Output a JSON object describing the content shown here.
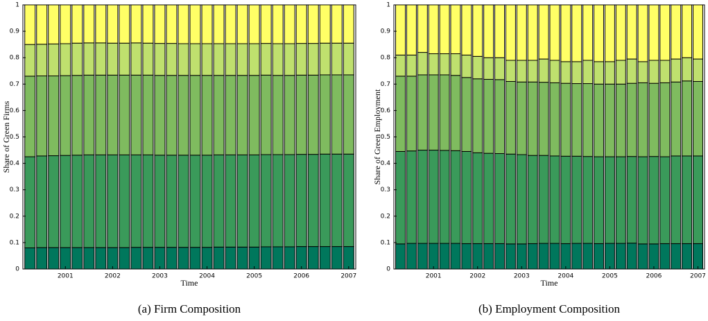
{
  "chart_data": [
    {
      "type": "stacked-bar",
      "ylabel": "Share of Green Firms",
      "xlabel": "Time",
      "caption": "(a) Firm Composition",
      "x": [
        2000.25,
        2000.5,
        2000.75,
        2001,
        2001.25,
        2001.5,
        2001.75,
        2002,
        2002.25,
        2002.5,
        2002.75,
        2003,
        2003.25,
        2003.5,
        2003.75,
        2004,
        2004.25,
        2004.5,
        2004.75,
        2005,
        2005.25,
        2005.5,
        2005.75,
        2006,
        2006.25,
        2006.5,
        2006.75,
        2007
      ],
      "xlim": [
        2000.1,
        2007.15
      ],
      "xticks": [
        2001,
        2002,
        2003,
        2004,
        2005,
        2006,
        2007
      ],
      "ylim": [
        0,
        1
      ],
      "yticks": [
        0,
        0.1,
        0.2,
        0.3,
        0.4,
        0.5,
        0.6,
        0.7,
        0.8,
        0.9,
        1
      ],
      "series": [
        {
          "color": "#00775c",
          "values": [
            0.08,
            0.081,
            0.081,
            0.081,
            0.081,
            0.081,
            0.081,
            0.081,
            0.081,
            0.082,
            0.082,
            0.082,
            0.082,
            0.082,
            0.082,
            0.082,
            0.083,
            0.083,
            0.083,
            0.083,
            0.084,
            0.084,
            0.084,
            0.085,
            0.085,
            0.085,
            0.085,
            0.085
          ]
        },
        {
          "color": "#3a9a5a",
          "values": [
            0.345,
            0.347,
            0.348,
            0.349,
            0.35,
            0.351,
            0.351,
            0.351,
            0.351,
            0.35,
            0.35,
            0.349,
            0.349,
            0.349,
            0.349,
            0.349,
            0.349,
            0.349,
            0.349,
            0.349,
            0.349,
            0.349,
            0.349,
            0.349,
            0.349,
            0.35,
            0.35,
            0.35
          ]
        },
        {
          "color": "#7fbb5f",
          "values": [
            0.305,
            0.303,
            0.302,
            0.302,
            0.302,
            0.302,
            0.302,
            0.302,
            0.302,
            0.302,
            0.302,
            0.302,
            0.302,
            0.302,
            0.302,
            0.302,
            0.301,
            0.301,
            0.301,
            0.301,
            0.301,
            0.3,
            0.3,
            0.3,
            0.3,
            0.3,
            0.3,
            0.3
          ]
        },
        {
          "color": "#bfe06e",
          "values": [
            0.12,
            0.12,
            0.121,
            0.121,
            0.122,
            0.122,
            0.122,
            0.121,
            0.121,
            0.122,
            0.121,
            0.121,
            0.121,
            0.12,
            0.12,
            0.12,
            0.12,
            0.12,
            0.12,
            0.12,
            0.12,
            0.12,
            0.12,
            0.12,
            0.12,
            0.12,
            0.12,
            0.12
          ]
        },
        {
          "color": "#ffff66",
          "values": [
            0.15,
            0.149,
            0.148,
            0.147,
            0.145,
            0.144,
            0.144,
            0.145,
            0.145,
            0.144,
            0.145,
            0.146,
            0.146,
            0.147,
            0.147,
            0.147,
            0.147,
            0.147,
            0.147,
            0.147,
            0.146,
            0.147,
            0.147,
            0.146,
            0.146,
            0.145,
            0.145,
            0.145
          ]
        }
      ]
    },
    {
      "type": "stacked-bar",
      "ylabel": "Share of Green Employment",
      "xlabel": "Time",
      "caption": "(b) Employment Composition",
      "x": [
        2000.25,
        2000.5,
        2000.75,
        2001,
        2001.25,
        2001.5,
        2001.75,
        2002,
        2002.25,
        2002.5,
        2002.75,
        2003,
        2003.25,
        2003.5,
        2003.75,
        2004,
        2004.25,
        2004.5,
        2004.75,
        2005,
        2005.25,
        2005.5,
        2005.75,
        2006,
        2006.25,
        2006.5,
        2006.75,
        2007
      ],
      "xlim": [
        2000.1,
        2007.15
      ],
      "xticks": [
        2001,
        2002,
        2003,
        2004,
        2005,
        2006,
        2007
      ],
      "ylim": [
        0,
        1
      ],
      "yticks": [
        0,
        0.1,
        0.2,
        0.3,
        0.4,
        0.5,
        0.6,
        0.7,
        0.8,
        0.9,
        1
      ],
      "series": [
        {
          "color": "#00775c",
          "values": [
            0.095,
            0.097,
            0.097,
            0.097,
            0.097,
            0.097,
            0.096,
            0.096,
            0.096,
            0.096,
            0.095,
            0.095,
            0.096,
            0.097,
            0.097,
            0.096,
            0.097,
            0.097,
            0.096,
            0.097,
            0.097,
            0.098,
            0.095,
            0.095,
            0.096,
            0.096,
            0.096,
            0.096
          ]
        },
        {
          "color": "#3a9a5a",
          "values": [
            0.35,
            0.35,
            0.353,
            0.353,
            0.352,
            0.351,
            0.349,
            0.344,
            0.342,
            0.341,
            0.34,
            0.338,
            0.334,
            0.333,
            0.331,
            0.331,
            0.33,
            0.329,
            0.329,
            0.328,
            0.328,
            0.328,
            0.33,
            0.331,
            0.329,
            0.332,
            0.332,
            0.332
          ]
        },
        {
          "color": "#7fbb5f",
          "values": [
            0.285,
            0.283,
            0.285,
            0.285,
            0.286,
            0.285,
            0.28,
            0.28,
            0.28,
            0.28,
            0.275,
            0.275,
            0.278,
            0.277,
            0.277,
            0.276,
            0.275,
            0.276,
            0.275,
            0.275,
            0.275,
            0.277,
            0.28,
            0.277,
            0.28,
            0.28,
            0.284,
            0.282
          ]
        },
        {
          "color": "#bfe06e",
          "values": [
            0.08,
            0.08,
            0.085,
            0.08,
            0.08,
            0.082,
            0.085,
            0.085,
            0.082,
            0.083,
            0.08,
            0.082,
            0.082,
            0.088,
            0.085,
            0.082,
            0.083,
            0.088,
            0.085,
            0.085,
            0.09,
            0.092,
            0.08,
            0.087,
            0.085,
            0.087,
            0.088,
            0.085
          ]
        },
        {
          "color": "#ffff66",
          "values": [
            0.19,
            0.19,
            0.18,
            0.185,
            0.185,
            0.185,
            0.19,
            0.195,
            0.2,
            0.2,
            0.21,
            0.21,
            0.21,
            0.205,
            0.21,
            0.215,
            0.215,
            0.21,
            0.215,
            0.215,
            0.21,
            0.205,
            0.215,
            0.21,
            0.21,
            0.205,
            0.2,
            0.205
          ]
        }
      ]
    }
  ]
}
